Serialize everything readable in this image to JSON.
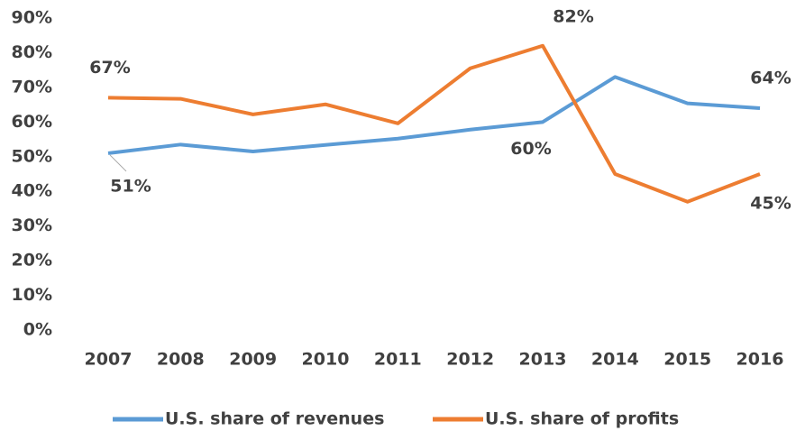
{
  "chart_data": {
    "type": "line",
    "categories": [
      "2007",
      "2008",
      "2009",
      "2010",
      "2011",
      "2012",
      "2013",
      "2014",
      "2015",
      "2016"
    ],
    "series": [
      {
        "name": "U.S. share of revenues",
        "color": "#5b9bd5",
        "values": [
          51,
          53.5,
          51.5,
          53.4,
          55.2,
          57.8,
          60,
          73,
          65.4,
          64
        ],
        "value_labels": [
          "51%",
          null,
          null,
          null,
          null,
          null,
          "60%",
          null,
          null,
          "64%"
        ]
      },
      {
        "name": "U.S. share of profits",
        "color": "#ed7d31",
        "values": [
          67,
          66.7,
          62.2,
          65.1,
          59.6,
          75.5,
          82,
          45,
          37,
          45
        ],
        "value_labels": [
          "67%",
          null,
          null,
          null,
          null,
          null,
          "82%",
          null,
          null,
          "45%"
        ]
      }
    ],
    "ylim": [
      0,
      90
    ],
    "yticks": [
      {
        "value": 0,
        "label": "0%"
      },
      {
        "value": 10,
        "label": "10%"
      },
      {
        "value": 20,
        "label": "20%"
      },
      {
        "value": 30,
        "label": "30%"
      },
      {
        "value": 40,
        "label": "40%"
      },
      {
        "value": 50,
        "label": "50%"
      },
      {
        "value": 60,
        "label": "60%"
      },
      {
        "value": 70,
        "label": "70%"
      },
      {
        "value": 80,
        "label": "80%"
      },
      {
        "value": 90,
        "label": "90%"
      }
    ],
    "grid": false,
    "legend": "bottom"
  }
}
